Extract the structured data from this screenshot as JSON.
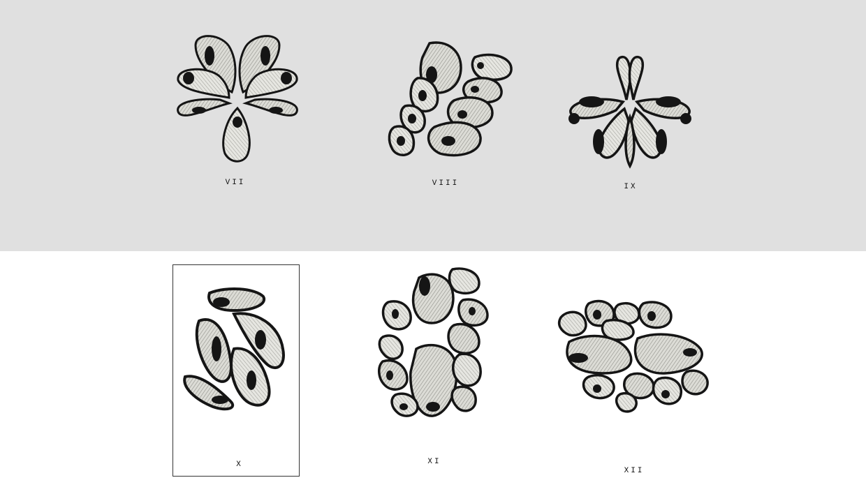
{
  "plates": [
    {
      "id": "vii",
      "label": "VII",
      "selected": false
    },
    {
      "id": "viii",
      "label": "VIII",
      "selected": false
    },
    {
      "id": "ix",
      "label": "IX",
      "selected": false
    },
    {
      "id": "x",
      "label": "X",
      "selected": true
    },
    {
      "id": "xi",
      "label": "XI",
      "selected": false
    },
    {
      "id": "xii",
      "label": "XII",
      "selected": false
    }
  ],
  "colors": {
    "top_background": "#e0e0e0",
    "bottom_background": "#ffffff",
    "ink": "#151515",
    "seed_fill": "#d8d8d2",
    "frame_border": "#333333"
  }
}
